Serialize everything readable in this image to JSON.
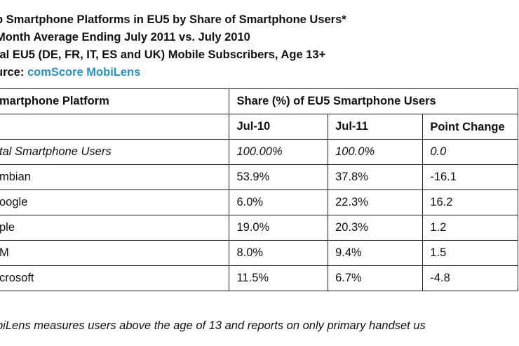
{
  "header": {
    "line1": "p Smartphone Platforms in EU5 by Share of Smartphone Users*",
    "line2": "Month Average Ending July 2011 vs. July 2010",
    "line3": "tal EU5 (DE, FR, IT, ES and UK) Mobile Subscribers, Age 13+",
    "source_prefix": "urce: ",
    "source_name": "comScore MobiLens"
  },
  "table": {
    "col0_header": "martphone Platform",
    "group_header": "Share (%) of EU5 Smartphone Users",
    "sub_headers": [
      "Jul-10",
      "Jul-11",
      "Point Change"
    ],
    "rows": [
      {
        "platform": "tal Smartphone Users",
        "jul10": "100.00%",
        "jul11": "100.0%",
        "change": "0.0"
      },
      {
        "platform": "mbian",
        "jul10": "53.9%",
        "jul11": "37.8%",
        "change": "-16.1"
      },
      {
        "platform": "oogle",
        "jul10": "6.0%",
        "jul11": "22.3%",
        "change": "16.2"
      },
      {
        "platform": "ple",
        "jul10": "19.0%",
        "jul11": "20.3%",
        "change": "1.2"
      },
      {
        "platform": "M",
        "jul10": "8.0%",
        "jul11": "9.4%",
        "change": "1.5"
      },
      {
        "platform": "crosoft",
        "jul10": "11.5%",
        "jul11": "6.7%",
        "change": "-4.8"
      }
    ]
  },
  "footnote": "biLens measures users above the age of 13 and reports on only primary handset us"
}
